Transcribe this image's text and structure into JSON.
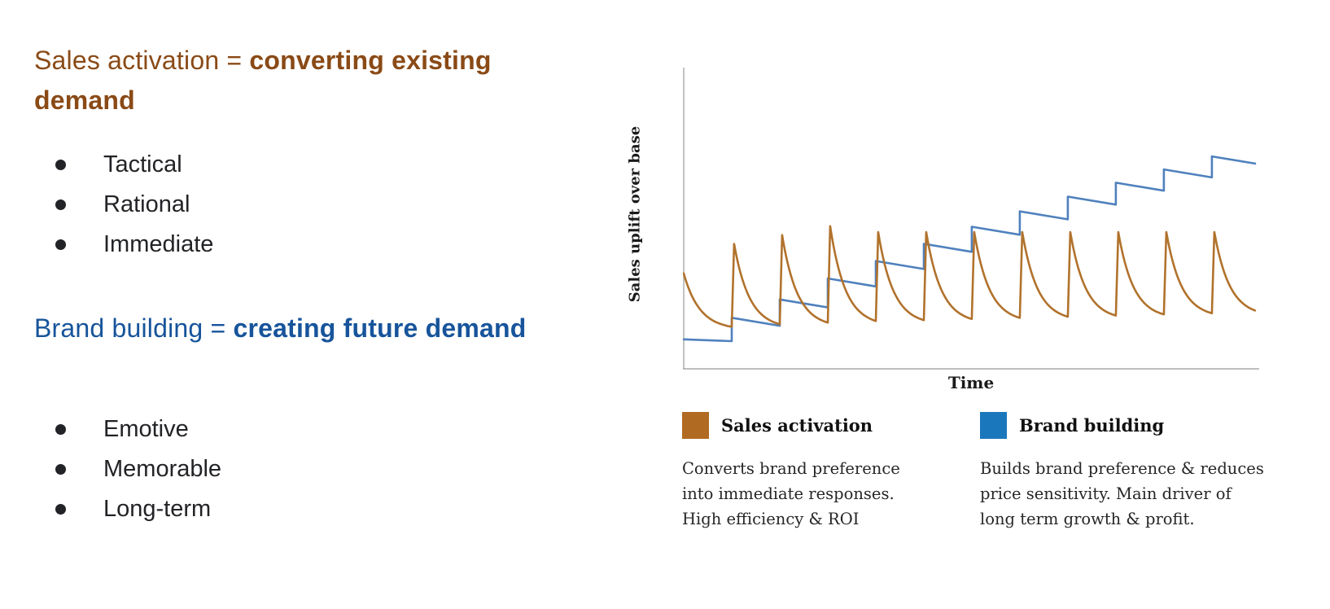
{
  "page": {
    "background": "#ffffff"
  },
  "left_panel": {
    "sales_heading": {
      "prefix": "Sales activation = ",
      "bold": "converting existing demand",
      "color": "#8a4a16"
    },
    "sales_bullets": [
      "Tactical",
      "Rational",
      "Immediate"
    ],
    "brand_heading": {
      "prefix": "Brand building = ",
      "bold": "creating future demand",
      "color": "#17549b"
    },
    "brand_bullets": [
      "Emotive",
      "Memorable",
      "Long-term"
    ]
  },
  "chart": {
    "y_axis_label": "Sales uplift over base",
    "x_axis_label": "Time",
    "axis_color": "#b2b2b2"
  },
  "chart_data": {
    "type": "line",
    "title": "",
    "xlabel": "Time",
    "ylabel": "Sales uplift over base",
    "x_range": [
      0,
      11.9
    ],
    "y_range": [
      0,
      1
    ],
    "grid": false,
    "tick_labels": "none (qualitative axes)",
    "legend_position": "below",
    "series": [
      {
        "name": "Sales activation",
        "color": "#b1722c",
        "pattern": "repeated spike then exponential decay (sawtooth)",
        "start_value": 0.32,
        "decay_rate": 3.0,
        "pulse_times": [
          1,
          2,
          3,
          4,
          5,
          6,
          7,
          8,
          9,
          10,
          11
        ],
        "peaks": [
          0.42,
          0.45,
          0.48,
          0.46,
          0.46,
          0.46,
          0.46,
          0.46,
          0.46,
          0.46,
          0.46
        ],
        "trough_start": 0.13,
        "trough_end": 0.175
      },
      {
        "name": "Brand building",
        "color": "#4f81bd",
        "pattern": "rising steps with slight decay between campaigns",
        "step_times": [
          1,
          2,
          3,
          4,
          5,
          6,
          7,
          8,
          9,
          10,
          11
        ],
        "levels": [
          0.097,
          0.17,
          0.232,
          0.303,
          0.362,
          0.42,
          0.478,
          0.53,
          0.58,
          0.627,
          0.672,
          0.716
        ],
        "within_step_decay": 0.027
      }
    ]
  },
  "legend": {
    "items": [
      {
        "label": "Sales activation",
        "color": "#b06a21",
        "description": "Converts brand preference into immediate responses. High efficiency & ROI"
      },
      {
        "label": "Brand building",
        "color": "#1b77bc",
        "description": "Builds brand preference & reduces price sensitivity. Main driver of long term growth & profit."
      }
    ]
  }
}
